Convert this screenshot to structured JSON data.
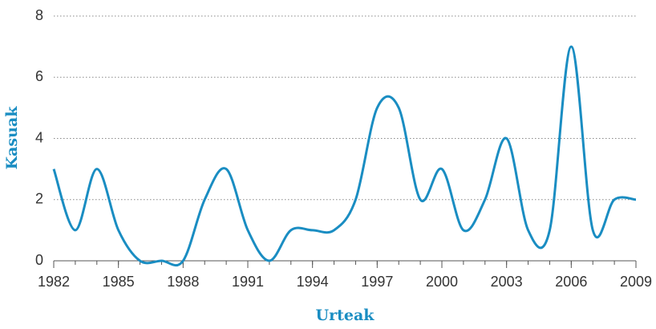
{
  "chart_data": {
    "type": "line",
    "x_label": "Urteak",
    "y_label": "Kasuak",
    "x": [
      1982,
      1983,
      1984,
      1985,
      1986,
      1987,
      1988,
      1989,
      1990,
      1991,
      1992,
      1993,
      1994,
      1995,
      1996,
      1997,
      1998,
      1999,
      2000,
      2001,
      2002,
      2003,
      2004,
      2005,
      2006,
      2007,
      2008,
      2009
    ],
    "series": [
      {
        "name": "Kasuak",
        "color": "#1a8dc2",
        "values": [
          3,
          1,
          3,
          1,
          0,
          0,
          0,
          2,
          3,
          1,
          0,
          1,
          1,
          1,
          2,
          5,
          5,
          2,
          3,
          1,
          2,
          4,
          1,
          1,
          7,
          1,
          2,
          2
        ]
      }
    ],
    "xlim": [
      1982,
      2009
    ],
    "xticks": [
      1982,
      1985,
      1988,
      1991,
      1994,
      1997,
      2000,
      2003,
      2006,
      2009
    ],
    "ylim": [
      0,
      8
    ],
    "yticks": [
      0,
      2,
      4,
      6,
      8
    ],
    "grid": true
  }
}
